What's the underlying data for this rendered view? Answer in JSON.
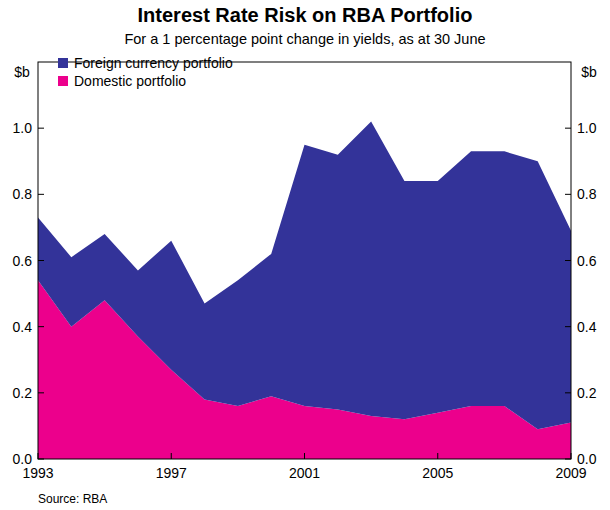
{
  "chart_data": {
    "type": "area",
    "title": "Interest Rate Risk on RBA Portfolio",
    "subtitle": "For a 1 percentage point change in yields, as at 30 June",
    "ylabel": "$b",
    "source": "Source: RBA",
    "stacked": true,
    "legend": "top-left",
    "x": [
      1993,
      1994,
      1995,
      1996,
      1997,
      1998,
      1999,
      2000,
      2001,
      2002,
      2003,
      2004,
      2005,
      2006,
      2007,
      2008,
      2009
    ],
    "xlim": [
      1993,
      2009
    ],
    "xticks": [
      1993,
      1997,
      2001,
      2005,
      2009
    ],
    "ylim": [
      0,
      1.2
    ],
    "yticks": [
      {
        "value": 0,
        "label": "0.0"
      },
      0.2,
      0.4,
      0.6,
      0.8,
      {
        "value": 1,
        "label": "1.0"
      }
    ],
    "series": [
      {
        "name": "Foreign currency portfolio",
        "color": "#333399",
        "values": [
          0.19,
          0.21,
          0.2,
          0.2,
          0.39,
          0.29,
          0.38,
          0.43,
          0.79,
          0.77,
          0.89,
          0.72,
          0.7,
          0.77,
          0.77,
          0.81,
          0.58
        ]
      },
      {
        "name": "Domestic portfolio",
        "color": "#ec008c",
        "values": [
          0.54,
          0.4,
          0.48,
          0.37,
          0.27,
          0.18,
          0.16,
          0.19,
          0.16,
          0.15,
          0.13,
          0.12,
          0.14,
          0.16,
          0.16,
          0.09,
          0.11
        ]
      }
    ]
  }
}
